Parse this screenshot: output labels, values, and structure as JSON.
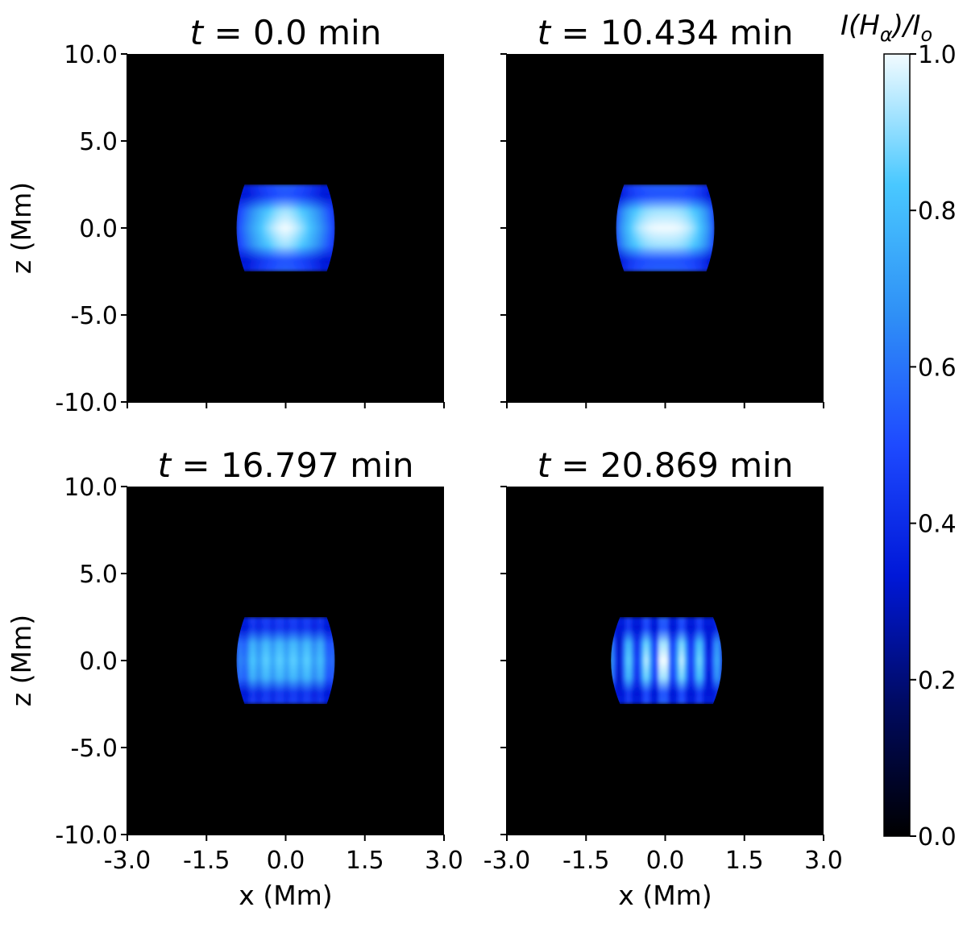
{
  "chart_data": {
    "type": "heatmap",
    "colormap": {
      "name": "black-blue-white",
      "stops": [
        "#000000",
        "#000a60",
        "#0018d8",
        "#1e4aff",
        "#2f90f6",
        "#49c8ff",
        "#f2fbff"
      ]
    },
    "colorbar": {
      "title": "I(H_α)/I_o",
      "title_main": "I(H",
      "title_sub1": "α",
      "title_mid": ")/I",
      "title_sub2": "o",
      "range": [
        0.0,
        1.0
      ],
      "ticks": [
        "0.0",
        "0.2",
        "0.4",
        "0.6",
        "0.8",
        "1.0"
      ]
    },
    "xlabel": "x (Mm)",
    "ylabel": "z (Mm)",
    "xlim": [
      -3.0,
      3.0
    ],
    "ylim": [
      -10.0,
      10.0
    ],
    "x_ticks": [
      "-3.0",
      "-1.5",
      "0.0",
      "1.5",
      "3.0"
    ],
    "y_ticks": [
      "10.0",
      "5.0",
      "0.0",
      "-5.0",
      "-10.0"
    ],
    "panels": [
      {
        "title_var": "t",
        "title_rest": " = 0.0 min",
        "blob": {
          "x_range": [
            -0.95,
            0.95
          ],
          "z_range": [
            -2.5,
            2.5
          ],
          "peak_intensity": 1.0,
          "structure": "smooth"
        }
      },
      {
        "title_var": "t",
        "title_rest": " = 10.434 min",
        "blob": {
          "x_range": [
            -0.95,
            0.95
          ],
          "z_range": [
            -2.5,
            2.5
          ],
          "peak_intensity": 1.0,
          "structure": "smooth-flat"
        }
      },
      {
        "title_var": "t",
        "title_rest": " = 16.797 min",
        "blob": {
          "x_range": [
            -0.95,
            0.95
          ],
          "z_range": [
            -2.5,
            2.5
          ],
          "peak_intensity": 0.85,
          "structure": "striated"
        }
      },
      {
        "title_var": "t",
        "title_rest": " = 20.869 min",
        "blob": {
          "x_range": [
            -1.05,
            1.1
          ],
          "z_range": [
            -2.5,
            2.5
          ],
          "peak_intensity": 1.0,
          "structure": "strong-striations"
        }
      }
    ]
  }
}
